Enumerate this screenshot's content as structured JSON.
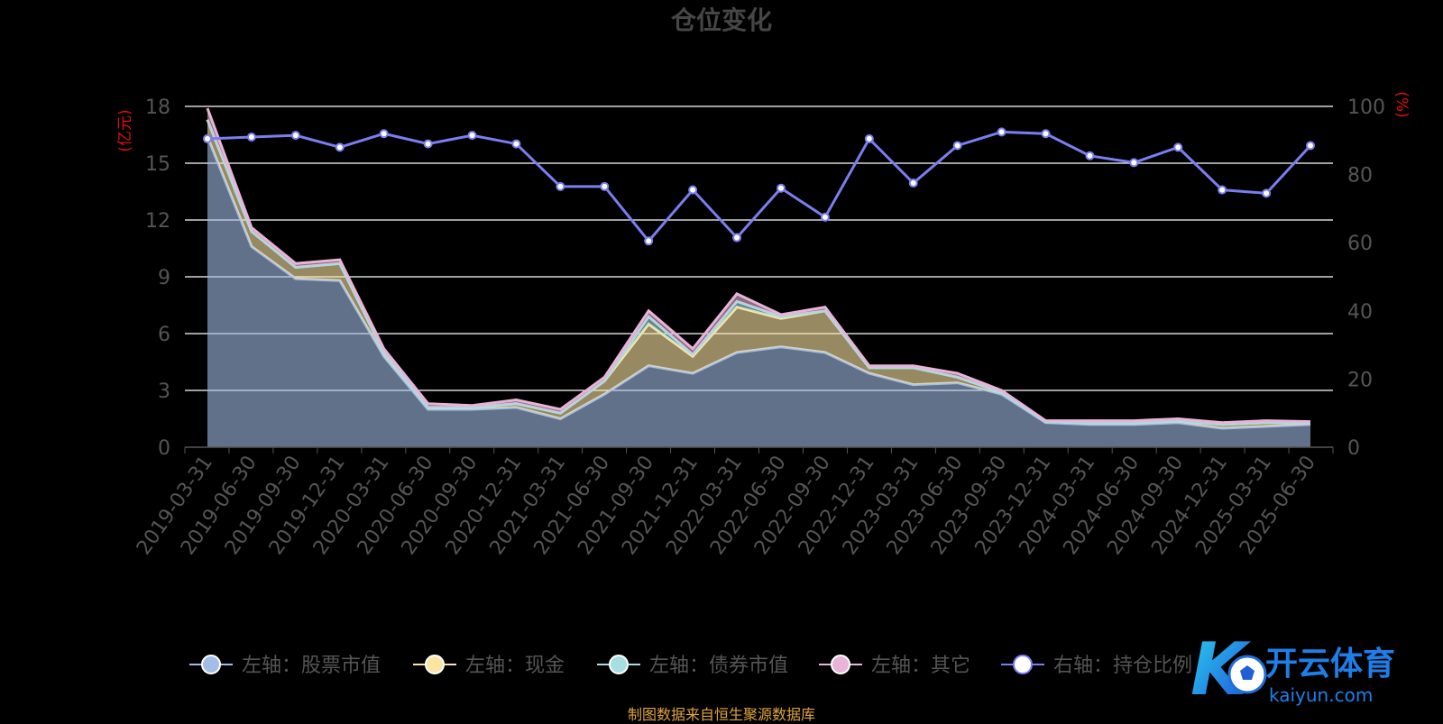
{
  "chart_data": {
    "type": "area",
    "title": "仓位变化",
    "ylabel": "(亿元)",
    "ylabel_right": "(%)",
    "ylim": [
      0,
      18
    ],
    "yticks": [
      0,
      3,
      6,
      9,
      12,
      15,
      18
    ],
    "ylim_right": [
      0,
      100
    ],
    "yticks_right": [
      0,
      20,
      40,
      60,
      80,
      100
    ],
    "grid": true,
    "legend_position": "bottom",
    "categories": [
      "2019-03-31",
      "2019-06-30",
      "2019-09-30",
      "2019-12-31",
      "2020-03-31",
      "2020-06-30",
      "2020-09-30",
      "2020-12-31",
      "2021-03-31",
      "2021-06-30",
      "2021-09-30",
      "2021-12-31",
      "2022-03-31",
      "2022-06-30",
      "2022-09-30",
      "2022-12-31",
      "2023-03-31",
      "2023-06-30",
      "2023-09-30",
      "2023-12-31",
      "2024-03-31",
      "2024-06-30",
      "2024-09-30",
      "2024-12-31",
      "2025-03-31",
      "2025-06-30"
    ],
    "series": [
      {
        "name": "左轴：股票市值",
        "axis": "left",
        "color": "#a3bde6",
        "values": [
          16.4,
          10.6,
          8.9,
          8.8,
          4.8,
          2.0,
          2.0,
          2.1,
          1.5,
          2.8,
          4.3,
          3.9,
          5.0,
          5.3,
          5.0,
          3.9,
          3.3,
          3.4,
          2.8,
          1.3,
          1.2,
          1.2,
          1.3,
          1.0,
          1.1,
          1.2
        ]
      },
      {
        "name": "左轴：现金",
        "axis": "left",
        "color": "#fbe5a3",
        "values": [
          0.9,
          0.8,
          0.6,
          0.9,
          0.2,
          0.1,
          0.1,
          0.2,
          0.3,
          0.7,
          2.2,
          0.9,
          2.4,
          1.5,
          2.2,
          0.3,
          0.9,
          0.3,
          0.1,
          0.05,
          0.1,
          0.1,
          0.1,
          0.2,
          0.2,
          0.1
        ]
      },
      {
        "name": "左轴：债券市值",
        "axis": "left",
        "color": "#a6dfe1",
        "values": [
          0,
          0,
          0,
          0,
          0,
          0,
          0,
          0,
          0,
          0,
          0.4,
          0.1,
          0.3,
          0.1,
          0,
          0,
          0,
          0,
          0,
          0,
          0,
          0,
          0,
          0,
          0,
          0
        ]
      },
      {
        "name": "左轴：其它",
        "axis": "left",
        "color": "#e8b4d8",
        "values": [
          0.6,
          0.2,
          0.2,
          0.2,
          0.2,
          0.2,
          0.1,
          0.2,
          0.2,
          0.2,
          0.3,
          0.3,
          0.4,
          0.1,
          0.2,
          0.1,
          0.1,
          0.2,
          0.1,
          0.05,
          0.1,
          0.1,
          0.1,
          0.1,
          0.1,
          0.05
        ]
      },
      {
        "name": "右轴：持仓比例",
        "axis": "right",
        "color": "#7b7ef0",
        "values": [
          90.5,
          91,
          91.5,
          88,
          92,
          89,
          91.5,
          89,
          76.5,
          76.5,
          60.5,
          75.5,
          61.5,
          76,
          67.5,
          90.5,
          77.5,
          88.5,
          92.5,
          92,
          85.5,
          83.5,
          88,
          75.5,
          74.5,
          88.5
        ]
      }
    ]
  },
  "footer_note": "制图数据来自恒生聚源数据库",
  "watermark": {
    "brand_cn": "开云体育",
    "brand_en": "kaiyun.com",
    "logo_letter": "K"
  },
  "colors": {
    "background": "#000000",
    "grid": "#ffffff",
    "axis_text": "#555555",
    "title": "#464646",
    "unit_label": "#e01010",
    "footer": "#e0a43a"
  }
}
